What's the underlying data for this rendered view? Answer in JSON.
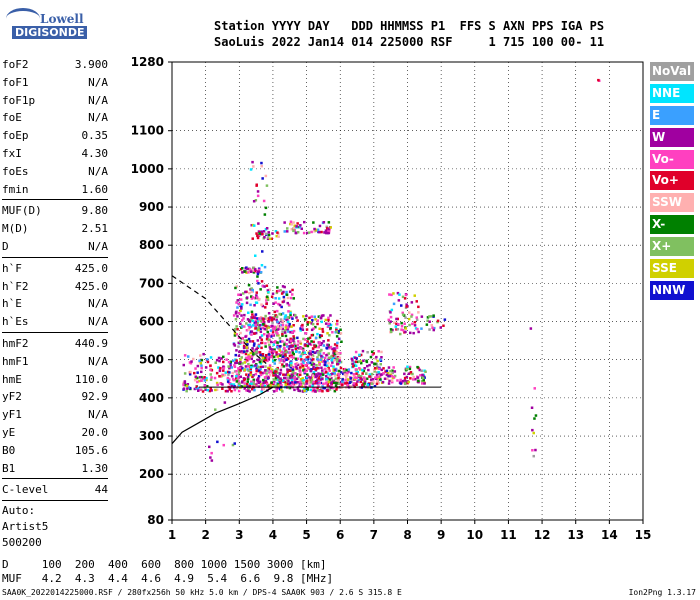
{
  "logo": {
    "line1": "Lowell",
    "line2": "DIGISONDE"
  },
  "header": {
    "line1": "Station YYYY DAY   DDD HHMMSS P1  FFS S AXN PPS IGA PS",
    "line2": "SaoLuis 2022 Jan14 014 225000 RSF     1 715 100 00- 11"
  },
  "params": {
    "group1": [
      {
        "k": "foF2",
        "v": "3.900"
      },
      {
        "k": "foF1",
        "v": "N/A"
      },
      {
        "k": "foF1p",
        "v": "N/A"
      },
      {
        "k": "foE",
        "v": "N/A"
      },
      {
        "k": "foEp",
        "v": "0.35"
      },
      {
        "k": "fxI",
        "v": "4.30"
      },
      {
        "k": "foEs",
        "v": "N/A"
      },
      {
        "k": "fmin",
        "v": "1.60"
      }
    ],
    "group2": [
      {
        "k": "MUF(D)",
        "v": "9.80"
      },
      {
        "k": "M(D)",
        "v": "2.51"
      },
      {
        "k": "D",
        "v": "N/A"
      }
    ],
    "group3": [
      {
        "k": "h`F",
        "v": "425.0"
      },
      {
        "k": "h`F2",
        "v": "425.0"
      },
      {
        "k": "h`E",
        "v": "N/A"
      },
      {
        "k": "h`Es",
        "v": "N/A"
      }
    ],
    "group4": [
      {
        "k": "hmF2",
        "v": "440.9"
      },
      {
        "k": "hmF1",
        "v": "N/A"
      },
      {
        "k": "hmE",
        "v": "110.0"
      },
      {
        "k": "yF2",
        "v": "92.9"
      },
      {
        "k": "yF1",
        "v": "N/A"
      },
      {
        "k": "yE",
        "v": "20.0"
      },
      {
        "k": "B0",
        "v": "105.6"
      },
      {
        "k": "B1",
        "v": "1.30"
      }
    ],
    "group5": [
      {
        "k": "C-level",
        "v": "44"
      }
    ],
    "auto": [
      "Auto:",
      "Artist5",
      "500200"
    ]
  },
  "legend": [
    {
      "label": "NoVal",
      "color": "#a0a0a0"
    },
    {
      "label": "NNE",
      "color": "#00e5ff"
    },
    {
      "label": "E",
      "color": "#3aa0ff"
    },
    {
      "label": "W",
      "color": "#a000a0"
    },
    {
      "label": "Vo-",
      "color": "#ff40c0"
    },
    {
      "label": "Vo+",
      "color": "#e0002a"
    },
    {
      "label": "SSW",
      "color": "#ffb0b0"
    },
    {
      "label": "X-",
      "color": "#008000"
    },
    {
      "label": "X+",
      "color": "#80c060"
    },
    {
      "label": "SSE",
      "color": "#d0d000"
    },
    {
      "label": "NNW",
      "color": "#1010d0"
    }
  ],
  "dmuf": {
    "line1": "D     100  200  400  600  800 1000 1500 3000 [km]",
    "line2": "MUF   4.2  4.3  4.4  4.6  4.9  5.4  6.6  9.8 [MHz]"
  },
  "footer": "SAA0K_2022014225000.RSF / 280fx256h 50 kHz 5.0 km / DPS-4 SAA0K 903 / 2.6 S 315.8 E",
  "version": "Ion2Png 1.3.17",
  "chart_data": {
    "type": "scatter",
    "title": "",
    "xlabel": "",
    "ylabel": "",
    "xlim": [
      1,
      15
    ],
    "ylim": [
      80,
      1280
    ],
    "x_ticks": [
      "1",
      "2",
      "3",
      "4",
      "5",
      "6",
      "7",
      "8",
      "9",
      "10",
      "11",
      "12",
      "13",
      "14",
      "15"
    ],
    "y_ticks": [
      {
        "v": 80,
        "label": "80"
      },
      {
        "v": 200,
        "label": "200"
      },
      {
        "v": 300,
        "label": "300"
      },
      {
        "v": 400,
        "label": "400"
      },
      {
        "v": 500,
        "label": "500"
      },
      {
        "v": 600,
        "label": "600"
      },
      {
        "v": 700,
        "label": "700"
      },
      {
        "v": 800,
        "label": "800"
      },
      {
        "v": 900,
        "label": "900"
      },
      {
        "v": 1000,
        "label": "1000"
      },
      {
        "v": 1100,
        "label": "1100"
      },
      {
        "v": 1280,
        "label": "1280"
      }
    ],
    "grid": true,
    "dashed_curve": [
      [
        1.0,
        720
      ],
      [
        1.5,
        690
      ],
      [
        2.0,
        660
      ],
      [
        2.5,
        610
      ],
      [
        3.0,
        560
      ],
      [
        3.4,
        520
      ],
      [
        3.8,
        490
      ]
    ],
    "solid_curve": [
      [
        1.0,
        280
      ],
      [
        1.3,
        310
      ],
      [
        1.8,
        335
      ],
      [
        2.3,
        360
      ],
      [
        3.0,
        385
      ],
      [
        3.6,
        408
      ],
      [
        4.0,
        428
      ]
    ],
    "level_line": {
      "x": [
        1.8,
        9.0
      ],
      "y": 428
    },
    "clusters": [
      {
        "x": [
          1.3,
          3.0
        ],
        "y": [
          420,
          520
        ],
        "n": 180
      },
      {
        "x": [
          2.8,
          4.6
        ],
        "y": [
          430,
          700
        ],
        "n": 520
      },
      {
        "x": [
          3.1,
          6.0
        ],
        "y": [
          420,
          620
        ],
        "n": 640
      },
      {
        "x": [
          4.5,
          6.0
        ],
        "y": [
          440,
          560
        ],
        "n": 220
      },
      {
        "x": [
          6.0,
          7.0
        ],
        "y": [
          430,
          480
        ],
        "n": 120
      },
      {
        "x": [
          6.3,
          7.2
        ],
        "y": [
          480,
          530
        ],
        "n": 50
      },
      {
        "x": [
          7.0,
          8.5
        ],
        "y": [
          440,
          485
        ],
        "n": 110
      },
      {
        "x": [
          7.4,
          8.3
        ],
        "y": [
          570,
          680
        ],
        "n": 70
      },
      {
        "x": [
          8.3,
          9.1
        ],
        "y": [
          580,
          620
        ],
        "n": 20
      },
      {
        "x": [
          3.0,
          3.6
        ],
        "y": [
          730,
          745
        ],
        "n": 30
      },
      {
        "x": [
          3.5,
          4.2
        ],
        "y": [
          820,
          840
        ],
        "n": 25
      },
      {
        "x": [
          4.3,
          5.7
        ],
        "y": [
          835,
          865
        ],
        "n": 60
      },
      {
        "x": [
          3.3,
          3.8
        ],
        "y": [
          700,
          1040
        ],
        "n": 40
      },
      {
        "x": [
          2.0,
          3.0
        ],
        "y": [
          230,
          450
        ],
        "n": 10
      },
      {
        "x": [
          11.6,
          11.8
        ],
        "y": [
          250,
          640
        ],
        "n": 10
      },
      {
        "x": [
          13.6,
          13.7
        ],
        "y": [
          1230,
          1240
        ],
        "n": 2
      }
    ]
  }
}
